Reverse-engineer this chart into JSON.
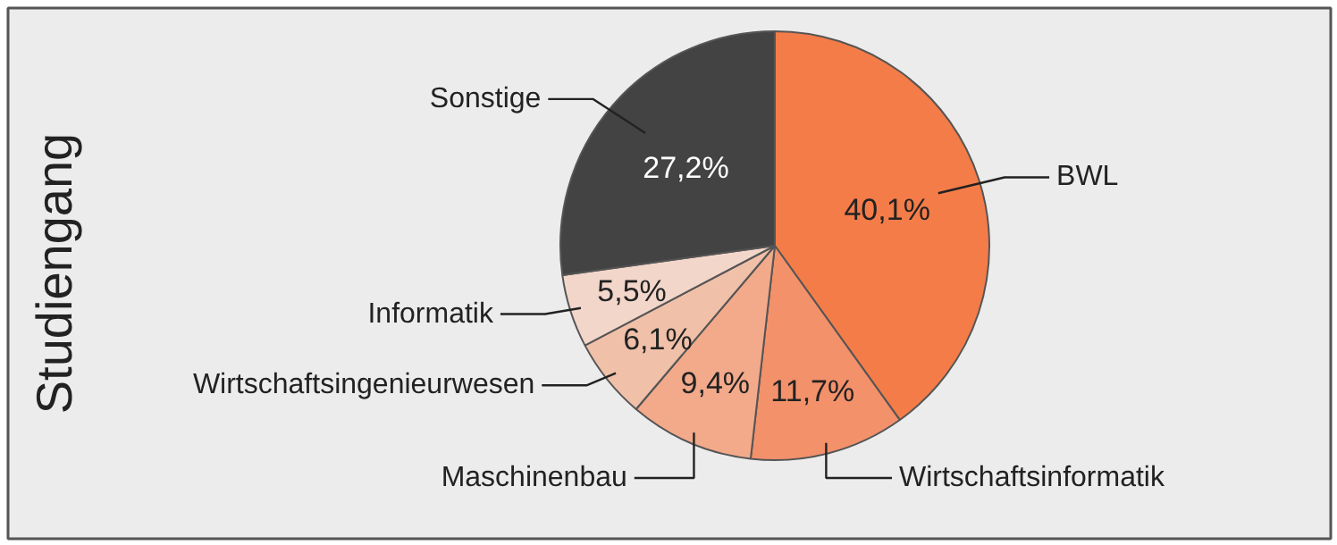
{
  "chart_data": {
    "type": "pie",
    "title": "Studiengang",
    "categories": [
      "BWL",
      "Wirtschaftsinformatik",
      "Maschinenbau",
      "Wirtschaftsingenieurwesen",
      "Informatik",
      "Sonstige"
    ],
    "values": [
      40.1,
      11.7,
      9.4,
      6.1,
      5.5,
      27.2
    ],
    "colors": [
      "#f47c48",
      "#f3916b",
      "#f2aa8b",
      "#f0c0a9",
      "#f3d6ca",
      "#434343"
    ],
    "value_labels": [
      "40,1%",
      "11,7%",
      "9,4%",
      "6,1%",
      "5,5%",
      "27,2%"
    ]
  }
}
